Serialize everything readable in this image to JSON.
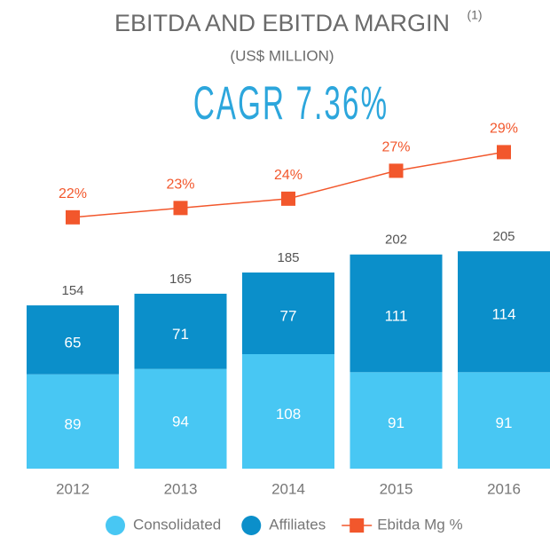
{
  "chart_data": {
    "type": "bar",
    "title": "EBITDA AND EBITDA MARGIN",
    "title_note": "(1)",
    "subtitle": "(US$ MILLION)",
    "annotation": "CAGR 7.36%",
    "stacked": true,
    "categories": [
      "2012",
      "2013",
      "2014",
      "2015",
      "2016"
    ],
    "ylim": [
      0,
      360
    ],
    "y2lim": [
      -5,
      36
    ],
    "series": [
      {
        "name": "Consolidated",
        "color": "#48c7f3",
        "values": [
          89,
          94,
          108,
          91,
          91
        ]
      },
      {
        "name": "Affiliates",
        "color": "#0b8fca",
        "values": [
          65,
          71,
          77,
          111,
          114
        ]
      },
      {
        "name": "Ebitda Mg %",
        "type": "line",
        "axis": "y2",
        "color": "#f2572c",
        "values": [
          22,
          23,
          24,
          27,
          29
        ],
        "value_labels": [
          "22%",
          "23%",
          "24%",
          "27%",
          "29%"
        ]
      }
    ],
    "totals": [
      154,
      165,
      185,
      202,
      205
    ]
  }
}
